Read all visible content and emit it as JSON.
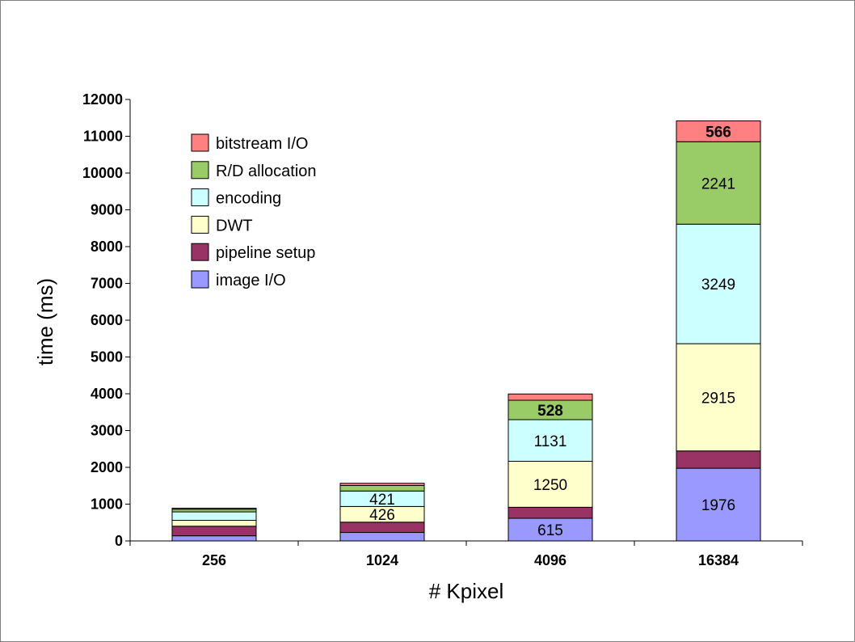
{
  "chart_data": {
    "type": "bar",
    "stacked": true,
    "categories": [
      "256",
      "1024",
      "4096",
      "16384"
    ],
    "xlabel": "# Kpixel",
    "ylabel": "time (ms)",
    "ylim": [
      0,
      12000
    ],
    "yticks": [
      0,
      1000,
      2000,
      3000,
      4000,
      5000,
      6000,
      7000,
      8000,
      9000,
      10000,
      11000,
      12000
    ],
    "legend_position": "top-left",
    "grid": false,
    "series": [
      {
        "name": "image I/O",
        "color": "#9999ff",
        "values": [
          140,
          230,
          615,
          1976
        ],
        "labels": [
          "",
          "",
          "615",
          "1976"
        ]
      },
      {
        "name": "pipeline setup",
        "color": "#993366",
        "values": [
          260,
          280,
          300,
          470
        ],
        "labels": [
          "",
          "",
          "",
          ""
        ]
      },
      {
        "name": "DWT",
        "color": "#ffffcc",
        "values": [
          160,
          426,
          1250,
          2915
        ],
        "labels": [
          "",
          "426",
          "1250",
          "2915"
        ]
      },
      {
        "name": "encoding",
        "color": "#ccffff",
        "values": [
          230,
          421,
          1131,
          3249
        ],
        "labels": [
          "",
          "421",
          "1131",
          "3249"
        ]
      },
      {
        "name": "R/D allocation",
        "color": "#99cc66",
        "values": [
          70,
          150,
          528,
          2241
        ],
        "labels": [
          "",
          "",
          "528",
          "2241"
        ]
      },
      {
        "name": "bitstream I/O",
        "color": "#ff8080",
        "values": [
          30,
          60,
          170,
          566
        ],
        "labels": [
          "",
          "",
          "",
          "566"
        ]
      }
    ]
  }
}
